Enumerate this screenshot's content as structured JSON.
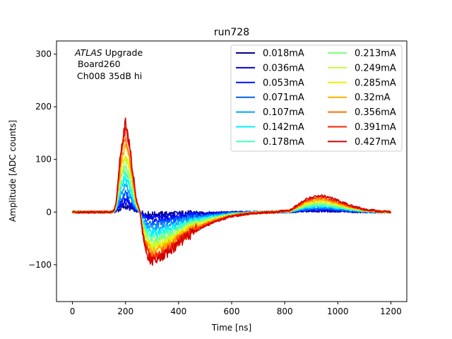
{
  "chart_data": {
    "type": "line",
    "title": "run728",
    "xlabel": "Time [ns]",
    "ylabel": "Amplitude [ADC counts]",
    "xlim": [
      -60,
      1260
    ],
    "ylim": [
      -170,
      325
    ],
    "xticks": [
      0,
      200,
      400,
      600,
      800,
      1000,
      1200
    ],
    "yticks": [
      -100,
      0,
      100,
      200,
      300
    ],
    "ytick_labels": [
      "−100",
      "0",
      "100",
      "200",
      "300"
    ],
    "grid": false,
    "legend_placement": "top-right",
    "legend_columns": 2,
    "annotations": {
      "line1_italic": "ATLAS",
      "line1_rest": " Upgrade",
      "line2": "Board260",
      "line3": "Ch008 35dB hi"
    },
    "pulse_shape": {
      "x": [
        0,
        150,
        158,
        165,
        175,
        185,
        195,
        200,
        205,
        215,
        225,
        240,
        255,
        265,
        280,
        300,
        320,
        345,
        380,
        420,
        470,
        530,
        600,
        680,
        760,
        820,
        850,
        880,
        920,
        950,
        990,
        1050,
        1100,
        1150,
        1200
      ],
      "y": [
        0,
        0,
        0.03,
        0.12,
        0.45,
        0.75,
        0.93,
        1.0,
        0.95,
        0.74,
        0.5,
        0.15,
        0.0,
        -0.38,
        -0.68,
        -0.82,
        -0.8,
        -0.72,
        -0.6,
        -0.44,
        -0.3,
        -0.17,
        -0.07,
        -0.02,
        0.0,
        0.02,
        0.08,
        0.14,
        0.18,
        0.18,
        0.14,
        0.07,
        0.03,
        0.01,
        0.0
      ]
    },
    "series": [
      {
        "name": "0.018mA",
        "color": "#00008f",
        "peak": 10,
        "trough": 5
      },
      {
        "name": "0.036mA",
        "color": "#0000df",
        "peak": 18,
        "trough": 12
      },
      {
        "name": "0.053mA",
        "color": "#0010ff",
        "peak": 27,
        "trough": 20
      },
      {
        "name": "0.071mA",
        "color": "#0060ff",
        "peak": 37,
        "trough": 28
      },
      {
        "name": "0.107mA",
        "color": "#00a0ff",
        "peak": 50,
        "trough": 38
      },
      {
        "name": "0.142mA",
        "color": "#00f0ff",
        "peak": 62,
        "trough": 48
      },
      {
        "name": "0.178mA",
        "color": "#40ffc0",
        "peak": 75,
        "trough": 58
      },
      {
        "name": "0.213mA",
        "color": "#80ff80",
        "peak": 88,
        "trough": 68
      },
      {
        "name": "0.249mA",
        "color": "#c0ff40",
        "peak": 101,
        "trough": 76
      },
      {
        "name": "0.285mA",
        "color": "#f0f000",
        "peak": 115,
        "trough": 84
      },
      {
        "name": "0.32mA",
        "color": "#ffb000",
        "peak": 128,
        "trough": 92
      },
      {
        "name": "0.356mA",
        "color": "#ff7000",
        "peak": 142,
        "trough": 100
      },
      {
        "name": "0.391mA",
        "color": "#ff2000",
        "peak": 158,
        "trough": 108
      },
      {
        "name": "0.427mA",
        "color": "#d00000",
        "peak": 172,
        "trough": 115
      }
    ]
  }
}
